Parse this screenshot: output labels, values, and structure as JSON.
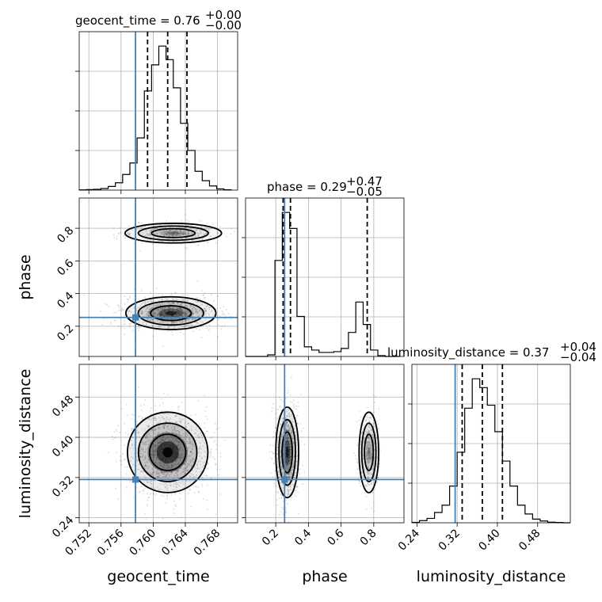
{
  "chart_data": {
    "type": "corner",
    "parameters": [
      "geocent_time",
      "phase",
      "luminosity_distance"
    ],
    "colors": {
      "truth": "#4682b4",
      "histogram": "#000000",
      "samples": "#000000"
    },
    "titles": [
      {
        "param": "geocent_time",
        "text": "geocent_time = 0.76",
        "sup": "+0.00",
        "sub": "−0.00"
      },
      {
        "param": "phase",
        "text": "phase = 0.29",
        "sup": "+0.47",
        "sub": "−0.05"
      },
      {
        "param": "luminosity_distance",
        "text": "luminosity_distance = 0.37",
        "sup": "+0.04",
        "sub": "−0.04"
      }
    ],
    "axes": {
      "geocent_time": {
        "label": "geocent_time",
        "range": [
          0.7508,
          0.7705
        ],
        "ticks": [
          "0.752",
          "0.756",
          "0.760",
          "0.764",
          "0.768"
        ],
        "tick_values": [
          0.752,
          0.756,
          0.76,
          0.764,
          0.768
        ]
      },
      "phase": {
        "label": "phase",
        "range": [
          0.015,
          0.985
        ],
        "ticks": [
          "0.2",
          "0.4",
          "0.6",
          "0.8"
        ],
        "tick_values": [
          0.2,
          0.4,
          0.6,
          0.8
        ]
      },
      "luminosity_distance": {
        "label": "luminosity_distance",
        "range": [
          0.23,
          0.545
        ],
        "ticks": [
          "0.24",
          "0.32",
          "0.40",
          "0.48"
        ],
        "tick_values": [
          0.24,
          0.32,
          0.4,
          0.48
        ]
      }
    },
    "truths": {
      "geocent_time": 0.7578,
      "phase": 0.254,
      "luminosity_distance": 0.316
    },
    "quantiles": {
      "geocent_time": [
        0.7593,
        0.7618,
        0.7642
      ],
      "phase": [
        0.245,
        0.29,
        0.76
      ],
      "luminosity_distance": [
        0.33,
        0.37,
        0.41
      ]
    },
    "histograms": {
      "geocent_time": {
        "edges": [
          0.7508,
          0.7517,
          0.7526,
          0.7535,
          0.7544,
          0.7553,
          0.7562,
          0.7571,
          0.758,
          0.7589,
          0.7598,
          0.7607,
          0.7616,
          0.7625,
          0.7634,
          0.7643,
          0.7652,
          0.7661,
          0.767,
          0.7679,
          0.7688,
          0.7697
        ],
        "counts": [
          0.2,
          0.5,
          0.8,
          1.5,
          3.5,
          7,
          15,
          26,
          50,
          95,
          120,
          138,
          125,
          98,
          64,
          38,
          18,
          9,
          4,
          1.2,
          0.3
        ]
      },
      "phase": {
        "edges": [
          0.015,
          0.06,
          0.105,
          0.15,
          0.195,
          0.24,
          0.285,
          0.33,
          0.375,
          0.42,
          0.465,
          0.51,
          0.555,
          0.6,
          0.645,
          0.69,
          0.735,
          0.78,
          0.825,
          0.87,
          0.915,
          0.96
        ],
        "counts": [
          0,
          0,
          0,
          2,
          120,
          180,
          160,
          50,
          12,
          8,
          5,
          5,
          6,
          10,
          30,
          68,
          40,
          8,
          1,
          0,
          0
        ]
      },
      "luminosity_distance": {
        "edges": [
          0.23,
          0.245,
          0.26,
          0.275,
          0.29,
          0.305,
          0.32,
          0.335,
          0.35,
          0.365,
          0.38,
          0.395,
          0.41,
          0.425,
          0.44,
          0.455,
          0.47,
          0.485,
          0.5,
          0.515,
          0.53,
          0.545
        ],
        "counts": [
          0.3,
          1.5,
          3,
          7,
          12,
          25,
          48,
          78,
          98,
          92,
          80,
          62,
          42,
          25,
          12,
          6,
          2.5,
          1.2,
          0.4,
          0.2,
          0
        ]
      }
    },
    "scatter_modes": {
      "phase_vs_geocent_time": [
        {
          "cx": 0.7622,
          "cy": 0.28,
          "sx": 0.0028,
          "sy": 0.05,
          "w": 0.7
        },
        {
          "cx": 0.7625,
          "cy": 0.77,
          "sx": 0.003,
          "sy": 0.03,
          "w": 0.3
        }
      ],
      "luminosity_distance_vs_geocent_time": [
        {
          "cx": 0.7618,
          "cy": 0.37,
          "sx": 0.0025,
          "sy": 0.04,
          "w": 1.0
        }
      ],
      "luminosity_distance_vs_phase": [
        {
          "cx": 0.27,
          "cy": 0.37,
          "sx": 0.035,
          "sy": 0.045,
          "w": 0.72
        },
        {
          "cx": 0.77,
          "cy": 0.37,
          "sx": 0.03,
          "sy": 0.04,
          "w": 0.28
        }
      ]
    }
  }
}
